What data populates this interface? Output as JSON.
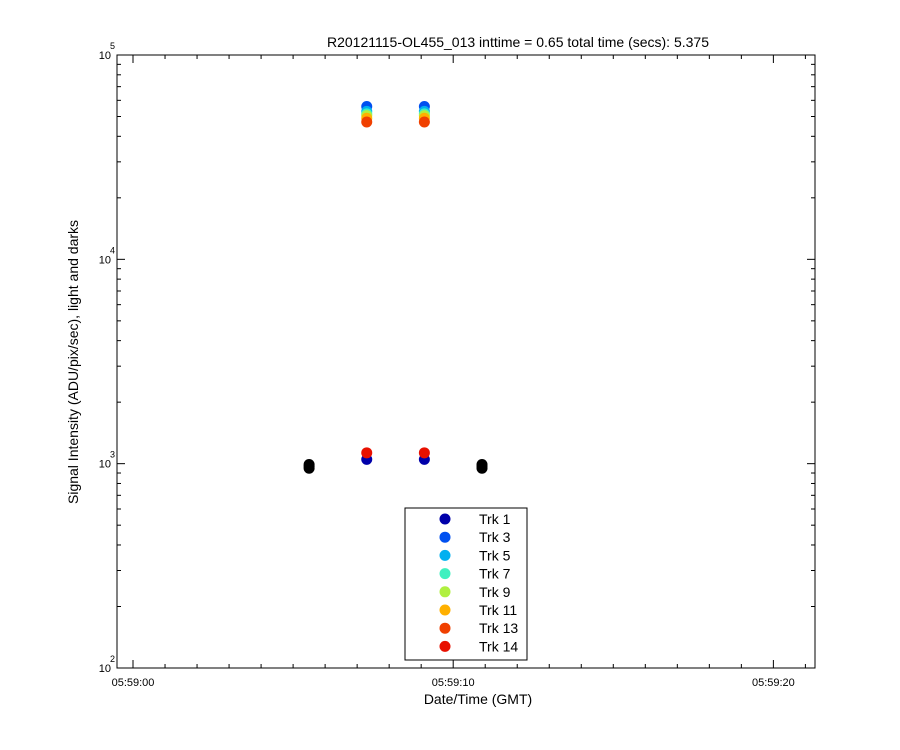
{
  "chart_data": {
    "type": "scatter",
    "title": "R20121115-OL455_013 inttime = 0.65 total time (secs): 5.375",
    "xlabel": "Date/Time (GMT)",
    "ylabel": "Signal Intensity (ADU/pix/sec), light and darks",
    "y_scale": "log",
    "ylim": [
      100,
      100000
    ],
    "xlim": [
      "05:58:59.5",
      "05:59:21.3"
    ],
    "x_ticks": [
      {
        "value": "05:59:00",
        "label": "05:59:00"
      },
      {
        "value": "05:59:10",
        "label": "05:59:10"
      },
      {
        "value": "05:59:20",
        "label": "05:59:20"
      }
    ],
    "y_ticks": [
      {
        "value": 100,
        "base": "10",
        "exp": "2"
      },
      {
        "value": 1000,
        "base": "10",
        "exp": "3"
      },
      {
        "value": 10000,
        "base": "10",
        "exp": "4"
      },
      {
        "value": 100000,
        "base": "10",
        "exp": "5"
      }
    ],
    "legend_position": "bottom-center",
    "series": [
      {
        "name": "Trk 1",
        "color": "#0000aa",
        "x": [
          "05:59:07.3",
          "05:59:09.1"
        ],
        "y": [
          1050,
          1050
        ]
      },
      {
        "name": "Trk 3",
        "color": "#0050f0",
        "x": [
          "05:59:07.3",
          "05:59:09.1"
        ],
        "y": [
          56000,
          56000
        ]
      },
      {
        "name": "Trk 5",
        "color": "#00b0f0",
        "x": [
          "05:59:07.3",
          "05:59:09.1"
        ],
        "y": [
          53000,
          53000
        ]
      },
      {
        "name": "Trk 7",
        "color": "#40f0c0",
        "x": [
          "05:59:07.3",
          "05:59:09.1"
        ],
        "y": [
          51500,
          51500
        ]
      },
      {
        "name": "Trk 9",
        "color": "#b0f040",
        "x": [
          "05:59:07.3",
          "05:59:09.1"
        ],
        "y": [
          50500,
          50500
        ]
      },
      {
        "name": "Trk 11",
        "color": "#ffb000",
        "x": [
          "05:59:07.3",
          "05:59:09.1"
        ],
        "y": [
          49000,
          49000
        ]
      },
      {
        "name": "Trk 13",
        "color": "#f04000",
        "x": [
          "05:59:07.3",
          "05:59:09.1"
        ],
        "y": [
          47000,
          47000
        ]
      },
      {
        "name": "Trk 14",
        "color": "#e81000",
        "x": [
          "05:59:07.3",
          "05:59:09.1"
        ],
        "y": [
          1130,
          1130
        ]
      }
    ],
    "dark_points": {
      "color": "#000000",
      "x": [
        "05:59:05.5",
        "05:59:05.5",
        "05:59:05.5",
        "05:59:10.9",
        "05:59:10.9",
        "05:59:10.9"
      ],
      "y": [
        950,
        970,
        990,
        950,
        970,
        990
      ]
    }
  }
}
